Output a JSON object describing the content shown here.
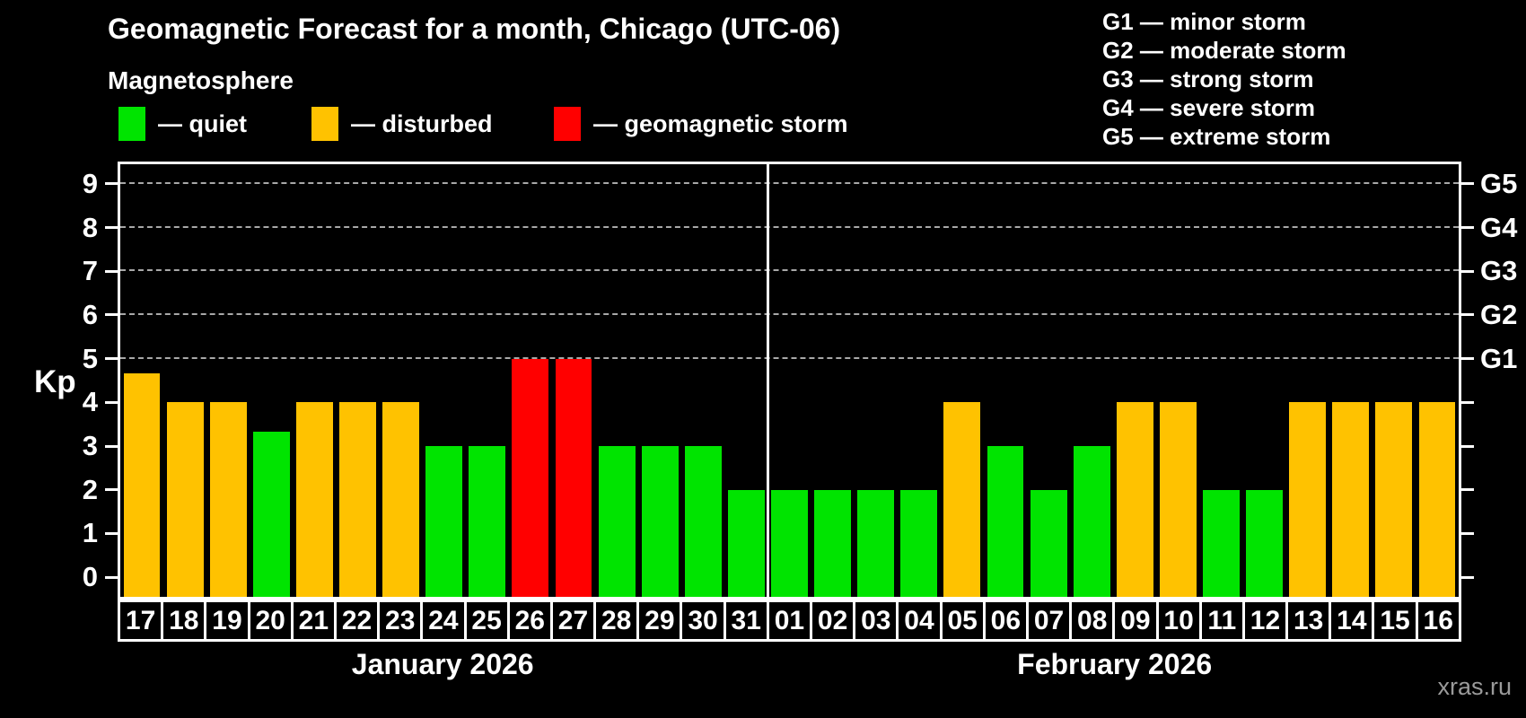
{
  "header": {
    "title": "Geomagnetic Forecast for a month, Chicago (UTC-06)",
    "subtitle": "Magnetosphere",
    "legend": [
      {
        "name": "quiet",
        "label": "— quiet",
        "color": "#00e400"
      },
      {
        "name": "disturbed",
        "label": "— disturbed",
        "color": "#ffc200"
      },
      {
        "name": "storm",
        "label": "— geomagnetic storm",
        "color": "#ff0000"
      }
    ]
  },
  "storm_scale": {
    "lines": [
      {
        "text": "G1 — minor storm"
      },
      {
        "text": "G2 — moderate storm"
      },
      {
        "text": "G3 — strong storm"
      },
      {
        "text": "G4 — severe storm"
      },
      {
        "text": "G5 — extreme storm"
      }
    ]
  },
  "watermark": "xras.ru",
  "chart_data": {
    "type": "bar",
    "title": "Geomagnetic Forecast for a month, Chicago (UTC-06)",
    "ylabel": "Kp",
    "xlabel": "",
    "ylim": [
      0,
      9
    ],
    "y_ticks": [
      0,
      1,
      2,
      3,
      4,
      5,
      6,
      7,
      8,
      9
    ],
    "gridline_values": [
      5,
      6,
      7,
      8,
      9
    ],
    "grid": "dashed horizontal at storm levels only",
    "right_axis": [
      {
        "value": 5,
        "label": "G1"
      },
      {
        "value": 6,
        "label": "G2"
      },
      {
        "value": 7,
        "label": "G3"
      },
      {
        "value": 8,
        "label": "G4"
      },
      {
        "value": 9,
        "label": "G5"
      }
    ],
    "status_colors": {
      "quiet": "#00e400",
      "disturbed": "#ffc200",
      "storm": "#ff0000"
    },
    "months": [
      {
        "label": "January 2026",
        "days": [
          {
            "day": "17",
            "kp": 4.67,
            "status": "disturbed"
          },
          {
            "day": "18",
            "kp": 4,
            "status": "disturbed"
          },
          {
            "day": "19",
            "kp": 4,
            "status": "disturbed"
          },
          {
            "day": "20",
            "kp": 3.33,
            "status": "quiet"
          },
          {
            "day": "21",
            "kp": 4,
            "status": "disturbed"
          },
          {
            "day": "22",
            "kp": 4,
            "status": "disturbed"
          },
          {
            "day": "23",
            "kp": 4,
            "status": "disturbed"
          },
          {
            "day": "24",
            "kp": 3,
            "status": "quiet"
          },
          {
            "day": "25",
            "kp": 3,
            "status": "quiet"
          },
          {
            "day": "26",
            "kp": 5,
            "status": "storm"
          },
          {
            "day": "27",
            "kp": 5,
            "status": "storm"
          },
          {
            "day": "28",
            "kp": 3,
            "status": "quiet"
          },
          {
            "day": "29",
            "kp": 3,
            "status": "quiet"
          },
          {
            "day": "30",
            "kp": 3,
            "status": "quiet"
          },
          {
            "day": "31",
            "kp": 2,
            "status": "quiet"
          }
        ]
      },
      {
        "label": "February 2026",
        "days": [
          {
            "day": "01",
            "kp": 2,
            "status": "quiet"
          },
          {
            "day": "02",
            "kp": 2,
            "status": "quiet"
          },
          {
            "day": "03",
            "kp": 2,
            "status": "quiet"
          },
          {
            "day": "04",
            "kp": 2,
            "status": "quiet"
          },
          {
            "day": "05",
            "kp": 4,
            "status": "disturbed"
          },
          {
            "day": "06",
            "kp": 3,
            "status": "quiet"
          },
          {
            "day": "07",
            "kp": 2,
            "status": "quiet"
          },
          {
            "day": "08",
            "kp": 3,
            "status": "quiet"
          },
          {
            "day": "09",
            "kp": 4,
            "status": "disturbed"
          },
          {
            "day": "10",
            "kp": 4,
            "status": "disturbed"
          },
          {
            "day": "11",
            "kp": 2,
            "status": "quiet"
          },
          {
            "day": "12",
            "kp": 2,
            "status": "quiet"
          },
          {
            "day": "13",
            "kp": 4,
            "status": "disturbed"
          },
          {
            "day": "14",
            "kp": 4,
            "status": "disturbed"
          },
          {
            "day": "15",
            "kp": 4,
            "status": "disturbed"
          },
          {
            "day": "16",
            "kp": 4,
            "status": "disturbed"
          }
        ]
      }
    ]
  }
}
